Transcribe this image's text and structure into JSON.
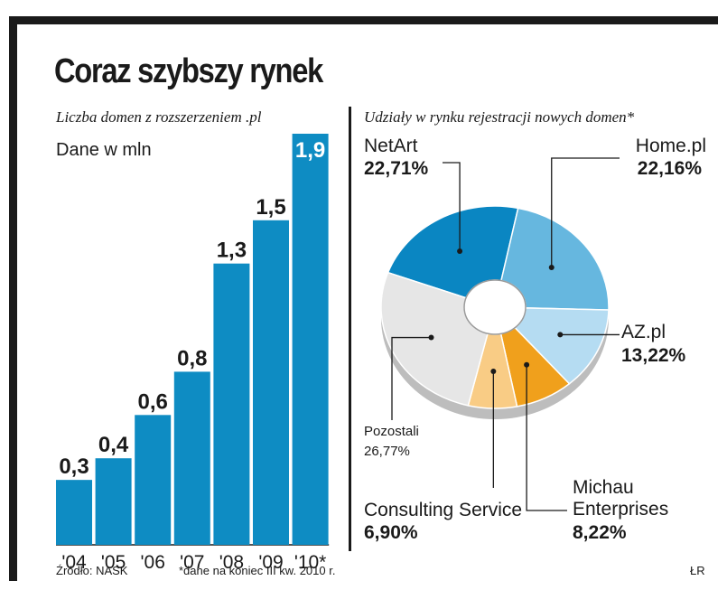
{
  "title": "Coraz szybszy rynek",
  "footer": {
    "source": "Źródło: NASK",
    "note": "*dane na koniec III kw. 2010 r.",
    "author": "ŁR"
  },
  "chart_data": [
    {
      "type": "bar",
      "title": "Liczba domen z rozszerzeniem .pl",
      "ylabel": "Dane w mln",
      "categories": [
        "'04",
        "'05",
        "'06",
        "'07",
        "'08",
        "'09",
        "'10*"
      ],
      "values": [
        0.3,
        0.4,
        0.6,
        0.8,
        1.3,
        1.5,
        1.9
      ],
      "value_labels": [
        "0,3",
        "0,4",
        "0,6",
        "0,8",
        "1,3",
        "1,5",
        "1,9"
      ],
      "ylim": [
        0,
        1.9
      ],
      "color": "#0e8cc3"
    },
    {
      "type": "pie",
      "title": "Udziały w rynku rejestracji nowych domen*",
      "slices": [
        {
          "name": "NetArt",
          "value": 22.71,
          "label": "22,71%",
          "color": "#0a86c2"
        },
        {
          "name": "Home.pl",
          "value": 22.16,
          "label": "22,16%",
          "color": "#66b7df"
        },
        {
          "name": "AZ.pl",
          "value": 13.22,
          "label": "13,22%",
          "color": "#b5dcf2"
        },
        {
          "name": "Michau Enterprises",
          "value": 8.22,
          "label": "8,22%",
          "color": "#f0a01c"
        },
        {
          "name": "Consulting Service",
          "value": 6.9,
          "label": "6,90%",
          "color": "#f9cc85"
        },
        {
          "name": "Pozostali",
          "value": 26.77,
          "label": "26,77%",
          "color": "#e6e6e6"
        }
      ]
    }
  ]
}
